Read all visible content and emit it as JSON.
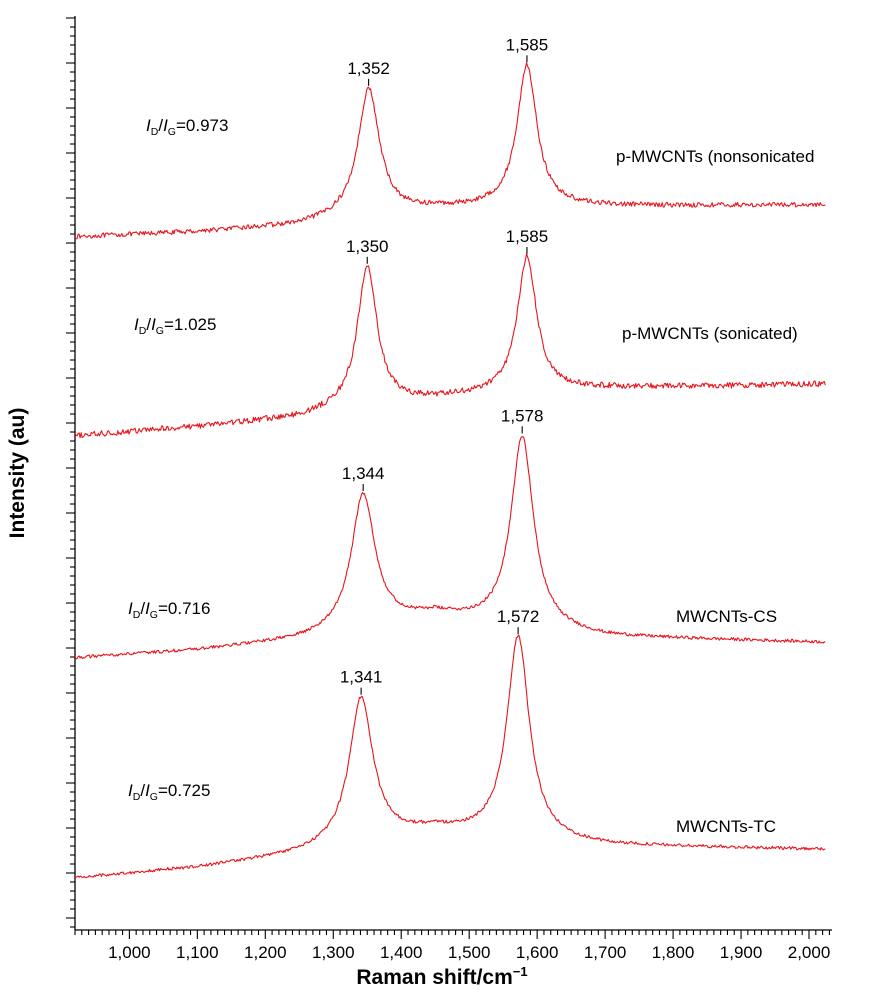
{
  "chart_data": {
    "type": "line",
    "xlabel": "Raman shift/cm",
    "xlabel_superscript": "−1",
    "ylabel": "Intensity (au)",
    "xlim": [
      920,
      2030
    ],
    "x_ticks": [
      1000,
      1100,
      1200,
      1300,
      1400,
      1500,
      1600,
      1700,
      1800,
      1900,
      2000
    ],
    "x_tick_labels": [
      "1,000",
      "1,100",
      "1,200",
      "1,300",
      "1,400",
      "1,500",
      "1,600",
      "1,700",
      "1,800",
      "1,900",
      "2,000"
    ],
    "y_ticks_labeled": false,
    "line_color": "#e8141c",
    "ratio_symbol": {
      "num": "I",
      "num_sub": "D",
      "den": "I",
      "den_sub": "G"
    },
    "series": [
      {
        "name": "p-MWCNTs (nonsonicated",
        "ratio": "0.973",
        "baseline": [
          [
            920,
            0.0
          ],
          [
            1100,
            0.1
          ],
          [
            1250,
            0.22
          ],
          [
            1300,
            0.33
          ],
          [
            1450,
            0.53
          ],
          [
            1550,
            0.58
          ],
          [
            1700,
            0.59
          ],
          [
            2030,
            0.62
          ]
        ],
        "peaks": [
          {
            "x": 1352,
            "label": "1,352",
            "height": 2.45,
            "width": 38
          },
          {
            "x": 1585,
            "label": "1,585",
            "height": 2.72,
            "width": 35
          }
        ],
        "noise": 0.045
      },
      {
        "name": "p-MWCNTs (sonicated)",
        "ratio": "1.025",
        "baseline": [
          [
            920,
            0.0
          ],
          [
            1100,
            0.18
          ],
          [
            1250,
            0.35
          ],
          [
            1300,
            0.48
          ],
          [
            1450,
            0.7
          ],
          [
            1550,
            0.82
          ],
          [
            1700,
            0.92
          ],
          [
            2030,
            1.0
          ]
        ],
        "peaks": [
          {
            "x": 1350,
            "label": "1,350",
            "height": 2.7,
            "width": 35
          },
          {
            "x": 1585,
            "label": "1,585",
            "height": 2.6,
            "width": 34
          }
        ],
        "noise": 0.055
      },
      {
        "name": "MWCNTs-CS",
        "ratio": "0.716",
        "baseline": [
          [
            920,
            0.0
          ],
          [
            1100,
            0.15
          ],
          [
            1250,
            0.34
          ],
          [
            1300,
            0.45
          ],
          [
            1450,
            0.8
          ],
          [
            1550,
            0.6
          ],
          [
            1700,
            0.4
          ],
          [
            2030,
            0.3
          ]
        ],
        "peaks": [
          {
            "x": 1344,
            "label": "1,344",
            "height": 2.6,
            "width": 42
          },
          {
            "x": 1578,
            "label": "1,578",
            "height": 3.7,
            "width": 40
          }
        ],
        "noise": 0.03
      },
      {
        "name": "MWCNTs-TC",
        "ratio": "0.725",
        "baseline": [
          [
            920,
            0.0
          ],
          [
            1100,
            0.2
          ],
          [
            1250,
            0.45
          ],
          [
            1300,
            0.58
          ],
          [
            1450,
            0.9
          ],
          [
            1550,
            0.75
          ],
          [
            1700,
            0.62
          ],
          [
            2030,
            0.55
          ]
        ],
        "peaks": [
          {
            "x": 1341,
            "label": "1,341",
            "height": 2.8,
            "width": 42
          },
          {
            "x": 1572,
            "label": "1,572",
            "height": 3.9,
            "width": 40
          }
        ],
        "noise": 0.03
      }
    ]
  }
}
